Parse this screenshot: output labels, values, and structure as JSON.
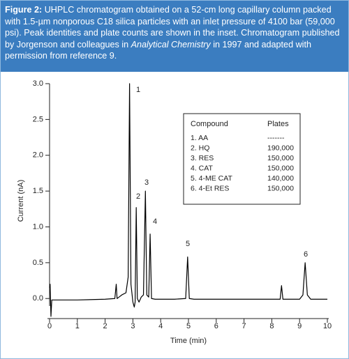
{
  "caption": {
    "label": "Figure 2:",
    "text_1": "UHPLC chromatogram obtained on a 52-cm long capillary column packed with 1.5-µm nonporous C18 silica particles with an inlet pressure of 4100 bar (59,000 psi). Peak identities and plate counts are shown in the inset. Chromatogram published by Jorgenson and colleagues in",
    "journal": "Analytical Chemistry",
    "text_2": "in 1997 and adapted with permission from reference 9."
  },
  "chart_data": {
    "type": "line",
    "xlabel": "Time (min)",
    "ylabel": "Current (nA)",
    "x": [
      0,
      0.02,
      0.05,
      0.08,
      0.12,
      0.3,
      1.0,
      2.0,
      2.35,
      2.4,
      2.43,
      2.5,
      2.6,
      2.75,
      2.83,
      2.88,
      2.93,
      3.0,
      3.05,
      3.08,
      3.12,
      3.16,
      3.22,
      3.3,
      3.38,
      3.45,
      3.5,
      3.57,
      3.62,
      3.67,
      3.8,
      4.5,
      4.9,
      4.97,
      5.03,
      5.2,
      6,
      7,
      8.3,
      8.35,
      8.4,
      9.0,
      9.12,
      9.2,
      9.28,
      9.4,
      10
    ],
    "series": [
      {
        "color": "#000000",
        "values": [
          0.15,
          0.2,
          -0.25,
          -0.02,
          -0.02,
          -0.02,
          -0.02,
          -0.01,
          0.0,
          0.2,
          0.0,
          0.02,
          0.05,
          0.08,
          0.3,
          3.0,
          0.2,
          -0.05,
          -0.12,
          -0.05,
          1.27,
          0.0,
          -0.05,
          0.02,
          0.05,
          1.5,
          0.05,
          0.02,
          0.9,
          0.0,
          -0.01,
          -0.01,
          0.0,
          0.58,
          0.0,
          -0.01,
          -0.01,
          -0.01,
          -0.01,
          0.18,
          -0.01,
          -0.01,
          0.05,
          0.5,
          0.05,
          -0.01,
          -0.01
        ]
      }
    ],
    "xlim": [
      0,
      10
    ],
    "xticks": [
      0,
      1,
      2,
      3,
      4,
      5,
      6,
      7,
      8,
      9,
      10
    ],
    "ylim": [
      -0.28,
      3.0
    ],
    "yticks": [
      {
        "value": 0,
        "label": "0.0"
      },
      {
        "value": 0.5,
        "label": "0.5"
      },
      {
        "value": 1,
        "label": "1.0"
      },
      {
        "value": 1.5,
        "label": "1.5"
      },
      {
        "value": 2,
        "label": "2.0"
      },
      {
        "value": 2.5,
        "label": "2.5"
      },
      {
        "value": 3,
        "label": "3.0"
      }
    ],
    "peak_labels": [
      "1",
      "2",
      "3",
      "4",
      "5",
      "6"
    ]
  },
  "inset": {
    "header": [
      "Compound",
      "Plates"
    ],
    "rows": [
      [
        "1. AA",
        "-------"
      ],
      [
        "2. HQ",
        "190,000"
      ],
      [
        "3. RES",
        "150,000"
      ],
      [
        "4. CAT",
        "150,000"
      ],
      [
        "5. 4-ME CAT",
        "140,000"
      ],
      [
        "6. 4-Et RES",
        "150,000"
      ]
    ]
  }
}
